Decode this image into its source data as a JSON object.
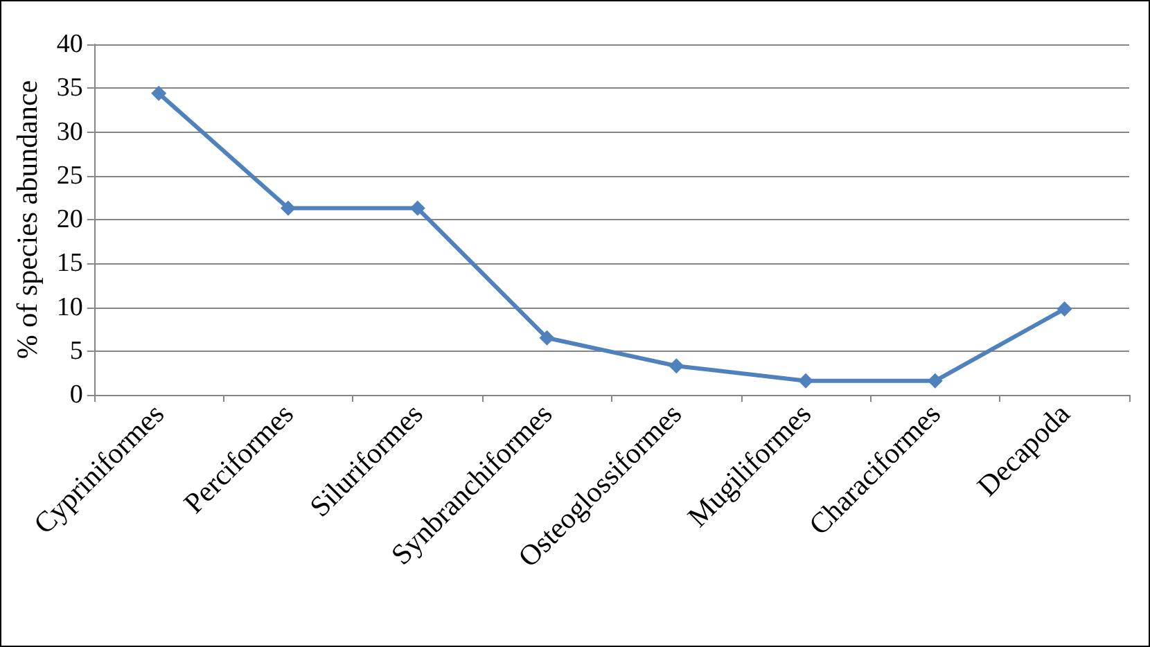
{
  "chart_data": {
    "type": "line",
    "ylabel": "% of species abundance",
    "categories": [
      "Cypriniformes",
      "Perciformes",
      "Siluriformes",
      "Synbranchiformes",
      "Osteoglossiformes",
      "Mugiliformes",
      "Characiformes",
      "Decapoda"
    ],
    "series": [
      {
        "color": "#4f81bd",
        "values": [
          34.4,
          21.3,
          21.3,
          6.5,
          3.3,
          1.6,
          1.6,
          9.8
        ]
      }
    ],
    "ylim": [
      0,
      40
    ],
    "yticks": [
      0,
      5,
      10,
      15,
      20,
      25,
      30,
      35,
      40
    ],
    "grid": "y",
    "marker": "diamond",
    "line_style": "solid"
  }
}
